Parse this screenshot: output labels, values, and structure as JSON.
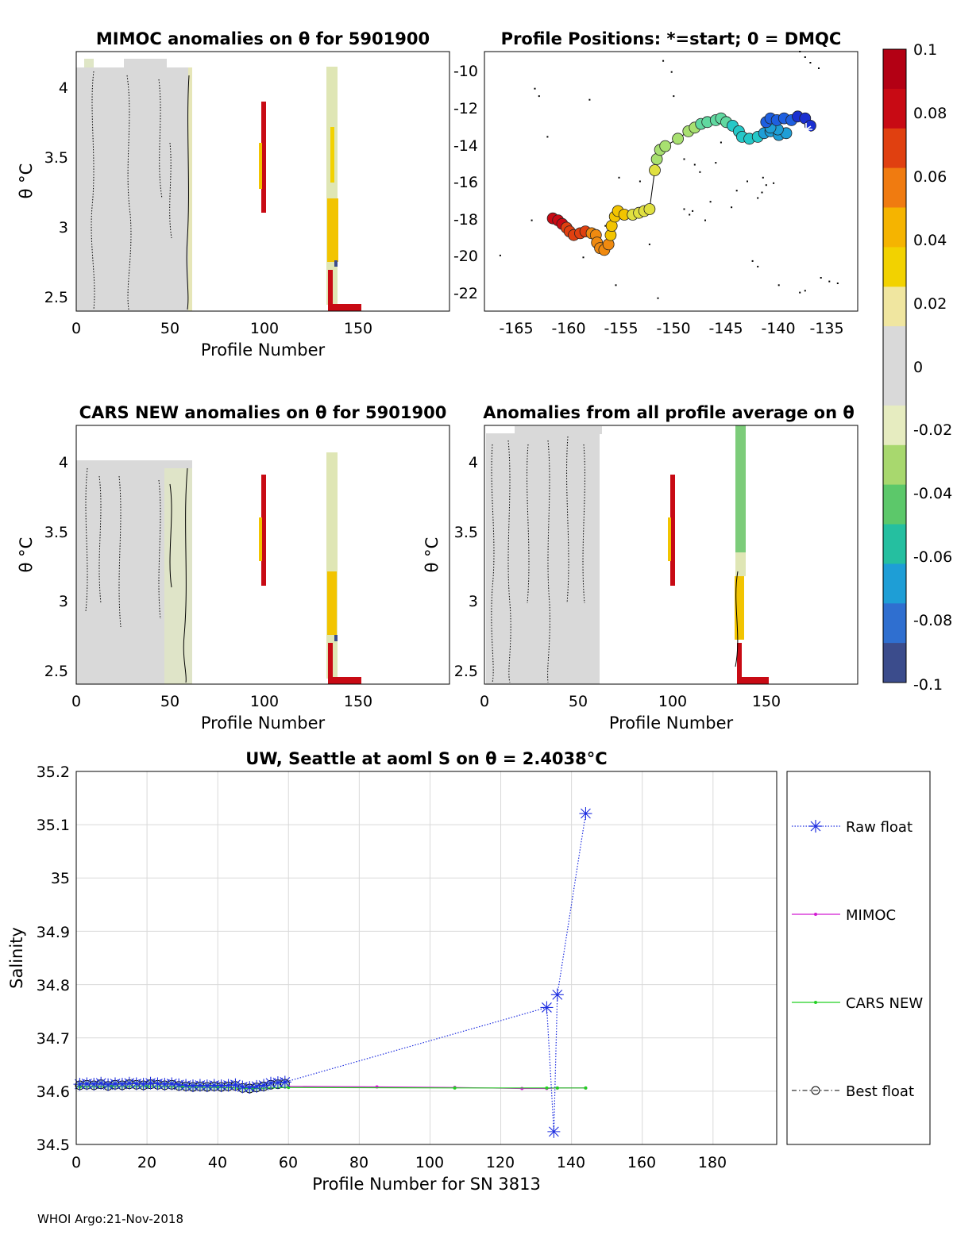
{
  "footer": "WHOI Argo:21-Nov-2018",
  "colorbar": {
    "ticks": [
      "0.1",
      "0.08",
      "0.06",
      "0.04",
      "0.02",
      "0",
      "-0.02",
      "-0.04",
      "-0.06",
      "-0.08",
      "-0.1"
    ],
    "range": [
      -0.1,
      0.1
    ],
    "colors": [
      "#3b4c8c",
      "#2f6fd0",
      "#1e9ed6",
      "#25bfa0",
      "#5cc86a",
      "#a8d86e",
      "#e6ecc0",
      "#d9d9d9",
      "#d9d9d9",
      "#f0e6a0",
      "#f2d200",
      "#f5b400",
      "#f07b10",
      "#e04010",
      "#c80a14",
      "#b30014"
    ]
  },
  "panels": {
    "mimoc": {
      "title": "MIMOC anomalies on θ  for 5901900",
      "xlabel": "Profile Number",
      "ylabel": "θ °C",
      "xticks": [
        "0",
        "50",
        "100",
        "150"
      ],
      "yticks": [
        "4",
        "3.5",
        "3",
        "2.5"
      ]
    },
    "positions": {
      "title": "Profile Positions: *=start; 0 = DMQC",
      "xticks": [
        "-165",
        "-160",
        "-155",
        "-150",
        "-145",
        "-140",
        "-135"
      ],
      "yticks": [
        "-10",
        "-12",
        "-14",
        "-16",
        "-18",
        "-20",
        "-22"
      ]
    },
    "cars": {
      "title": "CARS NEW anomalies on θ for 5901900",
      "xlabel": "Profile Number",
      "ylabel": "θ °C",
      "xticks": [
        "0",
        "50",
        "100",
        "150"
      ],
      "yticks": [
        "4",
        "3.5",
        "3",
        "2.5"
      ]
    },
    "allavg": {
      "title": "Anomalies from all profile average on θ",
      "xlabel": "Profile Number",
      "ylabel": "θ °C",
      "xticks": [
        "0",
        "50",
        "100",
        "150"
      ],
      "yticks": [
        "4",
        "3.5",
        "3",
        "2.5"
      ]
    }
  },
  "chart_data": [
    {
      "type": "heatmap",
      "title": "MIMOC anomalies on θ  for 5901900",
      "xlabel": "Profile Number",
      "ylabel": "θ °C",
      "xlim": [
        0,
        199
      ],
      "ylim": [
        2.4,
        4.25
      ]
    },
    {
      "type": "scatter",
      "title": "Profile Positions: *=start; 0 = DMQC",
      "xlim": [
        -168,
        -132.5
      ],
      "ylim": [
        -23,
        -9
      ],
      "track": [
        [
          -137,
          -13.0
        ],
        [
          -137.5,
          -12.6
        ],
        [
          -138.2,
          -12.5
        ],
        [
          -138.8,
          -12.7
        ],
        [
          -139.5,
          -12.6
        ],
        [
          -140.2,
          -12.7
        ],
        [
          -140.8,
          -12.6
        ],
        [
          -141.2,
          -12.8
        ],
        [
          -140.8,
          -13.1
        ],
        [
          -140.1,
          -13.2
        ],
        [
          -139.3,
          -13.4
        ],
        [
          -140,
          -13.5
        ],
        [
          -140.8,
          -13.3
        ],
        [
          -141.4,
          -13.4
        ],
        [
          -142,
          -13.6
        ],
        [
          -142.8,
          -13.7
        ],
        [
          -143.5,
          -13.6
        ],
        [
          -143.8,
          -13.3
        ],
        [
          -144.4,
          -13.0
        ],
        [
          -145,
          -12.8
        ],
        [
          -145.5,
          -12.6
        ],
        [
          -146,
          -12.7
        ],
        [
          -146.8,
          -12.8
        ],
        [
          -147.4,
          -12.9
        ],
        [
          -148,
          -13.1
        ],
        [
          -148.6,
          -13.3
        ],
        [
          -149.6,
          -13.7
        ],
        [
          -150.8,
          -14.1
        ],
        [
          -151.3,
          -14.3
        ],
        [
          -151.6,
          -14.8
        ],
        [
          -151.8,
          -15.4
        ],
        [
          -152.3,
          -17.5
        ],
        [
          -152.8,
          -17.6
        ],
        [
          -153.3,
          -17.7
        ],
        [
          -153.9,
          -17.8
        ],
        [
          -154.7,
          -17.8
        ],
        [
          -155.3,
          -17.6
        ],
        [
          -155.6,
          -17.9
        ],
        [
          -155.9,
          -18.4
        ],
        [
          -156.0,
          -18.9
        ],
        [
          -156.2,
          -19.4
        ],
        [
          -156.6,
          -19.7
        ],
        [
          -157.0,
          -19.6
        ],
        [
          -157.3,
          -19.3
        ],
        [
          -157.4,
          -18.9
        ],
        [
          -157.8,
          -18.8
        ],
        [
          -158.4,
          -18.7
        ],
        [
          -158.9,
          -18.8
        ],
        [
          -159.5,
          -18.9
        ],
        [
          -159.9,
          -18.7
        ],
        [
          -160.2,
          -18.5
        ],
        [
          -160.6,
          -18.3
        ],
        [
          -161.0,
          -18.1
        ],
        [
          -161.5,
          -18.0
        ]
      ]
    },
    {
      "type": "heatmap",
      "title": "CARS NEW anomalies on θ for 5901900",
      "xlabel": "Profile Number",
      "ylabel": "θ °C",
      "xlim": [
        0,
        199
      ],
      "ylim": [
        2.4,
        4.25
      ]
    },
    {
      "type": "heatmap",
      "title": "Anomalies from all profile average on θ",
      "xlabel": "Profile Number",
      "ylabel": "θ °C",
      "xlim": [
        0,
        199
      ],
      "ylim": [
        2.4,
        4.25
      ]
    },
    {
      "type": "line",
      "title": "UW, Seattle at aoml S on θ = 2.4038°C",
      "xlabel": "Profile Number for SN 3813",
      "ylabel": "Salinity",
      "xlim": [
        0,
        198
      ],
      "ylim": [
        34.5,
        35.2
      ],
      "xticks": [
        "0",
        "20",
        "40",
        "60",
        "80",
        "100",
        "120",
        "140",
        "160",
        "180"
      ],
      "yticks": [
        "35.2",
        "35.1",
        "35",
        "34.9",
        "34.8",
        "34.7",
        "34.6",
        "34.5"
      ],
      "legend": [
        "Raw float",
        "MIMOC",
        "CARS NEW",
        "Best float"
      ],
      "series": [
        {
          "name": "Raw float",
          "x": [
            1,
            3,
            5,
            7,
            9,
            11,
            13,
            15,
            17,
            19,
            21,
            23,
            25,
            27,
            29,
            31,
            33,
            35,
            37,
            39,
            41,
            43,
            45,
            47,
            49,
            51,
            53,
            55,
            57,
            59,
            133,
            135,
            136,
            144
          ],
          "y": [
            34.613,
            34.614,
            34.613,
            34.615,
            34.612,
            34.614,
            34.613,
            34.615,
            34.614,
            34.613,
            34.615,
            34.614,
            34.613,
            34.614,
            34.612,
            34.611,
            34.61,
            34.611,
            34.61,
            34.611,
            34.61,
            34.611,
            34.612,
            34.608,
            34.607,
            34.609,
            34.611,
            34.615,
            34.616,
            34.617,
            34.757,
            34.524,
            34.781,
            35.121
          ]
        },
        {
          "name": "MIMOC",
          "x": [
            60,
            85,
            107,
            126,
            133,
            136,
            144
          ],
          "y": [
            34.609,
            34.608,
            34.607,
            34.605,
            34.605,
            34.606,
            34.606
          ]
        },
        {
          "name": "CARS NEW",
          "x": [
            1,
            10,
            20,
            30,
            40,
            50,
            60,
            107,
            133,
            136,
            144
          ],
          "y": [
            34.608,
            34.609,
            34.609,
            34.608,
            34.607,
            34.605,
            34.607,
            34.606,
            34.606,
            34.606,
            34.606
          ]
        },
        {
          "name": "Best float",
          "x": [
            1,
            3,
            5,
            7,
            9,
            11,
            13,
            15,
            17,
            19,
            21,
            23,
            25,
            27,
            29,
            31,
            33,
            35,
            37,
            39,
            41,
            43,
            45,
            47,
            49,
            51,
            53,
            55,
            57,
            59
          ],
          "y": [
            34.611,
            34.612,
            34.611,
            34.613,
            34.61,
            34.612,
            34.611,
            34.613,
            34.612,
            34.611,
            34.613,
            34.612,
            34.611,
            34.612,
            34.61,
            34.609,
            34.608,
            34.609,
            34.608,
            34.609,
            34.608,
            34.609,
            34.61,
            34.606,
            34.605,
            34.607,
            34.609,
            34.612,
            34.613,
            34.614
          ]
        }
      ]
    }
  ]
}
